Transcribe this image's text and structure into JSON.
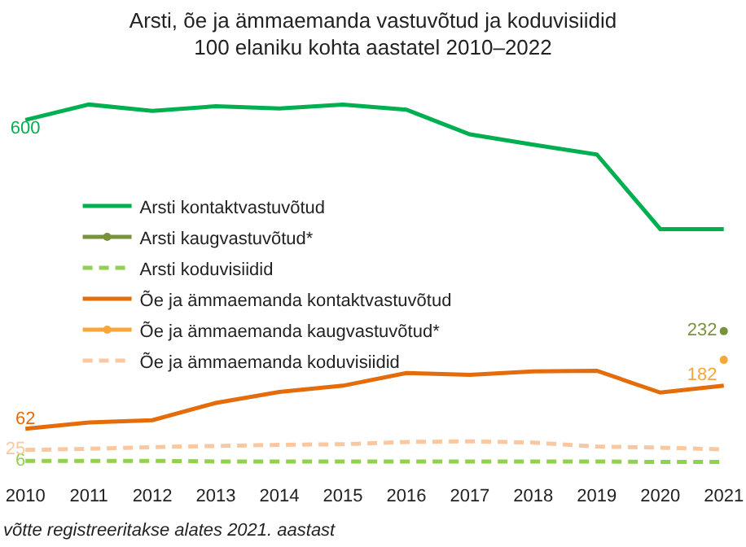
{
  "chart_data": {
    "type": "line",
    "title": "Arsti, õe ja ämmaemanda vastuvõtud ja koduvisiidid",
    "subtitle": "100 elaniku kohta aastatel 2010–2022",
    "categories": [
      "2010",
      "2011",
      "2012",
      "2013",
      "2014",
      "2015",
      "2016",
      "2017",
      "2018",
      "2019",
      "2020",
      "2021"
    ],
    "tick_labels": "x",
    "legend": "left",
    "marker": "none",
    "series": [
      {
        "name": "Arsti kontaktvastuvõtud",
        "color": "#00b050",
        "line_style": "solid",
        "values": [
          600,
          627,
          616,
          624,
          620,
          627,
          618,
          575,
          557,
          540,
          410,
          410
        ],
        "value_labels": [
          "600",
          null,
          null,
          null,
          null,
          null,
          null,
          null,
          null,
          null,
          null,
          null
        ]
      },
      {
        "name": "Arsti kaugvastuvõtud*",
        "color": "#77933c",
        "line_style": "solid",
        "marker": "circle",
        "values": [
          null,
          null,
          null,
          null,
          null,
          null,
          null,
          null,
          null,
          null,
          null,
          232
        ],
        "value_labels": [
          null,
          null,
          null,
          null,
          null,
          null,
          null,
          null,
          null,
          null,
          null,
          "232"
        ]
      },
      {
        "name": "Arsti koduvisiidid",
        "color": "#92d050",
        "line_style": "dashed",
        "values": [
          6,
          6,
          6,
          5,
          5,
          5,
          5,
          5,
          5,
          5,
          4,
          4
        ],
        "value_labels": [
          "6",
          null,
          null,
          null,
          null,
          null,
          null,
          null,
          null,
          null,
          null,
          null
        ]
      },
      {
        "name": "Õe ja ämmaemanda kontaktvastuvõtud",
        "color": "#e46c0a",
        "line_style": "solid",
        "values": [
          62,
          73,
          77,
          107,
          126,
          137,
          159,
          156,
          162,
          163,
          125,
          137
        ],
        "value_labels": [
          "62",
          null,
          null,
          null,
          null,
          null,
          null,
          null,
          null,
          null,
          null,
          null
        ]
      },
      {
        "name": "Õe ja ämmaemanda kaugvastuvõtud*",
        "color": "#f9a53a",
        "line_style": "solid",
        "marker": "circle",
        "values": [
          null,
          null,
          null,
          null,
          null,
          null,
          null,
          null,
          null,
          null,
          null,
          182
        ],
        "value_labels": [
          null,
          null,
          null,
          null,
          null,
          null,
          null,
          null,
          null,
          null,
          null,
          "182"
        ]
      },
      {
        "name": "Õe ja ämmaemanda koduvisiidid",
        "color": "#fac8a0",
        "line_style": "dashed",
        "values": [
          25,
          27,
          30,
          32,
          34,
          35,
          39,
          40,
          38,
          31,
          29,
          26
        ],
        "value_labels": [
          "25",
          null,
          null,
          null,
          null,
          null,
          null,
          null,
          null,
          null,
          null,
          null
        ]
      }
    ],
    "annotations": [
      "võtte registreeritakse alates 2021. aastast"
    ]
  }
}
